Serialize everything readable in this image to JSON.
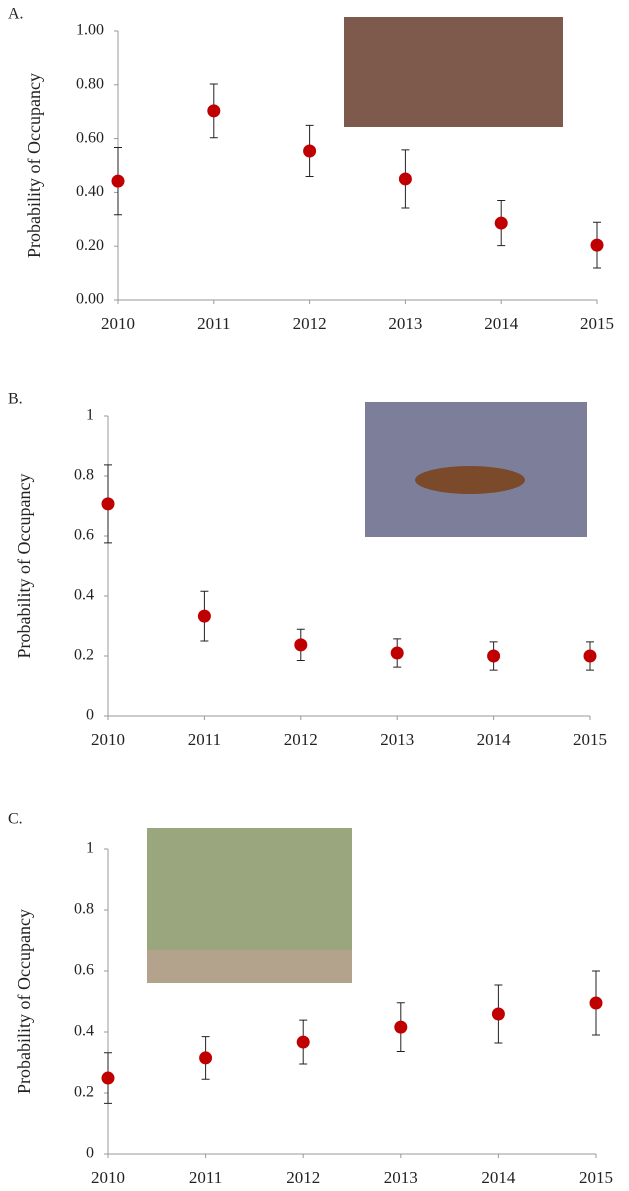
{
  "chart_data": [
    {
      "type": "scatter",
      "panel_label": "A.",
      "y_label": "Probability of Occupancy",
      "color": "#c00000",
      "x": [
        2010,
        2011,
        2012,
        2013,
        2014,
        2015
      ],
      "values": [
        0.442,
        0.703,
        0.554,
        0.45,
        0.286,
        0.204
      ],
      "errors": [
        0.125,
        0.1,
        0.095,
        0.108,
        0.084,
        0.085
      ],
      "xlim": [
        2010,
        2015
      ],
      "xticks": [
        2010,
        2011,
        2012,
        2013,
        2014,
        2015
      ],
      "ylim": [
        0,
        1
      ],
      "yticks": [
        {
          "value": 0,
          "label": "0.00"
        },
        {
          "value": 0.2,
          "label": "0.20"
        },
        {
          "value": 0.4,
          "label": "0.40"
        },
        {
          "value": 0.6,
          "label": "0.60"
        },
        {
          "value": 0.8,
          "label": "0.80"
        },
        {
          "value": 1,
          "label": "1.00"
        }
      ]
    },
    {
      "type": "scatter",
      "panel_label": "B.",
      "y_label": "Probability of Occupancy",
      "color": "#c00000",
      "x": [
        2010,
        2011,
        2012,
        2013,
        2014,
        2015
      ],
      "values": [
        0.707,
        0.333,
        0.237,
        0.21,
        0.2,
        0.2
      ],
      "errors": [
        0.13,
        0.083,
        0.052,
        0.047,
        0.047,
        0.047
      ],
      "xlim": [
        2010,
        2015
      ],
      "xticks": [
        2010,
        2011,
        2012,
        2013,
        2014,
        2015
      ],
      "ylim": [
        0,
        1
      ],
      "yticks": [
        0,
        0.2,
        0.4,
        0.6,
        0.8,
        1
      ]
    },
    {
      "type": "scatter",
      "panel_label": "C.",
      "y_label": "Probability of Occupancy",
      "color": "#c00000",
      "x": [
        2010,
        2011,
        2012,
        2013,
        2014,
        2015
      ],
      "values": [
        0.249,
        0.315,
        0.367,
        0.416,
        0.459,
        0.495
      ],
      "errors": [
        0.083,
        0.07,
        0.072,
        0.08,
        0.095,
        0.105
      ],
      "xlim": [
        2010,
        2015
      ],
      "xticks": [
        2010,
        2011,
        2012,
        2013,
        2014,
        2015
      ],
      "ylim": [
        0,
        1
      ],
      "yticks": [
        0,
        0.2,
        0.4,
        0.6,
        0.8,
        1
      ]
    }
  ]
}
